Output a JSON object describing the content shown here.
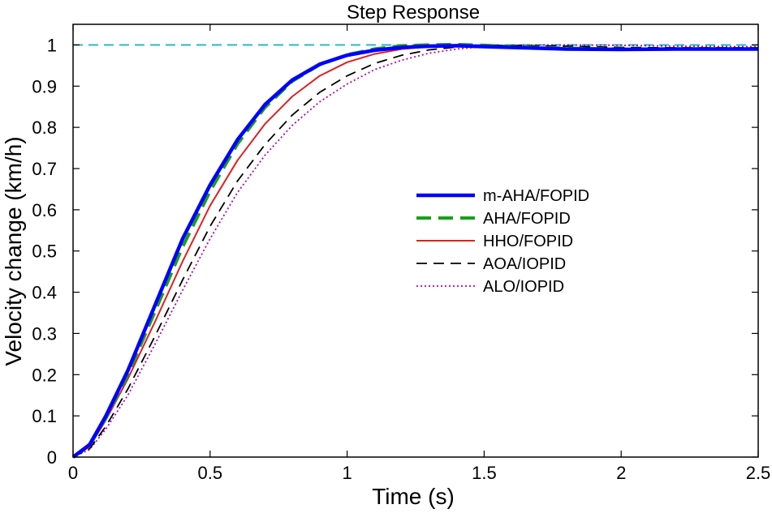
{
  "chart_data": {
    "type": "line",
    "title": "Step Response",
    "xlabel": "Time (s)",
    "ylabel": "Velocity change (km/h)",
    "xlim": [
      0,
      2.5
    ],
    "ylim": [
      0,
      1.05
    ],
    "xticks": [
      0,
      0.5,
      1,
      1.5,
      2,
      2.5
    ],
    "xtick_labels": [
      "0",
      "0.5",
      "1",
      "1.5",
      "2",
      "2.5"
    ],
    "yticks": [
      0,
      0.1,
      0.2,
      0.3,
      0.4,
      0.5,
      0.6,
      0.7,
      0.8,
      0.9,
      1
    ],
    "ytick_labels": [
      "0",
      "0.1",
      "0.2",
      "0.3",
      "0.4",
      "0.5",
      "0.6",
      "0.7",
      "0.8",
      "0.9",
      "1"
    ],
    "grid": false,
    "legend_position": "center-right",
    "reference_line": {
      "y": 1,
      "color": "#1fb5c4",
      "style": "dashed"
    },
    "series": [
      {
        "name": "m-AHA/FOPID",
        "color": "#0000ff",
        "style": "solid-thick",
        "x": [
          0,
          0.06,
          0.12,
          0.2,
          0.3,
          0.4,
          0.5,
          0.6,
          0.7,
          0.8,
          0.9,
          1.0,
          1.1,
          1.2,
          1.3,
          1.4,
          1.5,
          1.6,
          1.8,
          2.0,
          2.2,
          2.4,
          2.5
        ],
        "y": [
          0,
          0.03,
          0.1,
          0.21,
          0.37,
          0.53,
          0.66,
          0.77,
          0.855,
          0.915,
          0.953,
          0.975,
          0.987,
          0.994,
          0.997,
          0.998,
          0.996,
          0.994,
          0.99,
          0.989,
          0.99,
          0.99,
          0.99
        ]
      },
      {
        "name": "AHA/FOPID",
        "color": "#1a9e1a",
        "style": "dashed-thick",
        "x": [
          0,
          0.06,
          0.12,
          0.2,
          0.3,
          0.4,
          0.5,
          0.6,
          0.7,
          0.8,
          0.9,
          1.0,
          1.1,
          1.2,
          1.3,
          1.4,
          1.5,
          1.6,
          1.8,
          2.0,
          2.2,
          2.4,
          2.5
        ],
        "y": [
          0,
          0.028,
          0.095,
          0.2,
          0.355,
          0.51,
          0.645,
          0.76,
          0.848,
          0.912,
          0.952,
          0.976,
          0.99,
          0.998,
          1.0,
          1.001,
          0.999,
          0.996,
          0.992,
          0.99,
          0.99,
          0.99,
          0.99
        ]
      },
      {
        "name": "HHO/FOPID",
        "color": "#e02020",
        "style": "solid",
        "x": [
          0,
          0.06,
          0.12,
          0.2,
          0.3,
          0.4,
          0.5,
          0.6,
          0.7,
          0.8,
          0.9,
          1.0,
          1.1,
          1.2,
          1.3,
          1.4,
          1.5,
          1.6,
          1.8,
          2.0,
          2.2,
          2.4,
          2.5
        ],
        "y": [
          0,
          0.025,
          0.09,
          0.19,
          0.33,
          0.475,
          0.61,
          0.72,
          0.808,
          0.875,
          0.925,
          0.958,
          0.978,
          0.99,
          0.996,
          0.998,
          0.997,
          0.995,
          0.99,
          0.988,
          0.988,
          0.989,
          0.99
        ]
      },
      {
        "name": "AOA/IOPID",
        "color": "#000000",
        "style": "dashed",
        "x": [
          0,
          0.06,
          0.12,
          0.2,
          0.3,
          0.4,
          0.5,
          0.6,
          0.7,
          0.8,
          0.9,
          1.0,
          1.1,
          1.2,
          1.3,
          1.4,
          1.5,
          1.6,
          1.8,
          2.0,
          2.2,
          2.4,
          2.5
        ],
        "y": [
          0,
          0.02,
          0.075,
          0.165,
          0.295,
          0.43,
          0.56,
          0.67,
          0.758,
          0.83,
          0.885,
          0.925,
          0.955,
          0.975,
          0.988,
          0.995,
          0.998,
          0.999,
          0.997,
          0.994,
          0.993,
          0.993,
          0.993
        ]
      },
      {
        "name": "ALO/IOPID",
        "color": "#b000b0",
        "style": "dotted",
        "x": [
          0,
          0.06,
          0.12,
          0.2,
          0.3,
          0.4,
          0.5,
          0.6,
          0.7,
          0.8,
          0.9,
          1.0,
          1.1,
          1.2,
          1.3,
          1.4,
          1.5,
          1.6,
          1.8,
          2.0,
          2.2,
          2.4,
          2.5
        ],
        "y": [
          0,
          0.018,
          0.068,
          0.15,
          0.275,
          0.405,
          0.53,
          0.642,
          0.732,
          0.805,
          0.862,
          0.905,
          0.94,
          0.963,
          0.98,
          0.99,
          0.996,
          0.999,
          1.0,
          0.999,
          0.997,
          0.996,
          0.996
        ]
      }
    ]
  }
}
